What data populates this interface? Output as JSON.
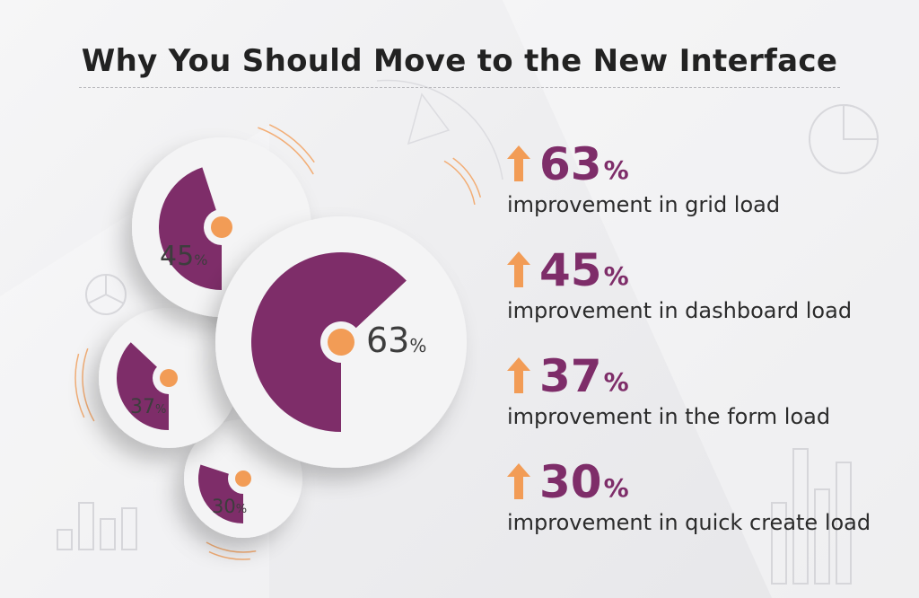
{
  "title": "Why You Should Move to the New Interface",
  "colors": {
    "accent_purple": "#7e2d69",
    "accent_orange": "#f29c56",
    "text_dark": "#2b2b2b"
  },
  "chart_data": {
    "type": "pie",
    "unit": "%",
    "values": [
      63,
      45,
      37,
      30
    ],
    "labels": [
      "63",
      "45",
      "37",
      "30"
    ]
  },
  "stats": [
    {
      "value": "63",
      "unit": "%",
      "description": "improvement in grid load",
      "icon": "up-arrow-icon"
    },
    {
      "value": "45",
      "unit": "%",
      "description": "improvement in dashboard load",
      "icon": "up-arrow-icon"
    },
    {
      "value": "37",
      "unit": "%",
      "description": "improvement in the form load",
      "icon": "up-arrow-icon"
    },
    {
      "value": "30",
      "unit": "%",
      "description": "improvement in quick create load",
      "icon": "up-arrow-icon"
    }
  ]
}
